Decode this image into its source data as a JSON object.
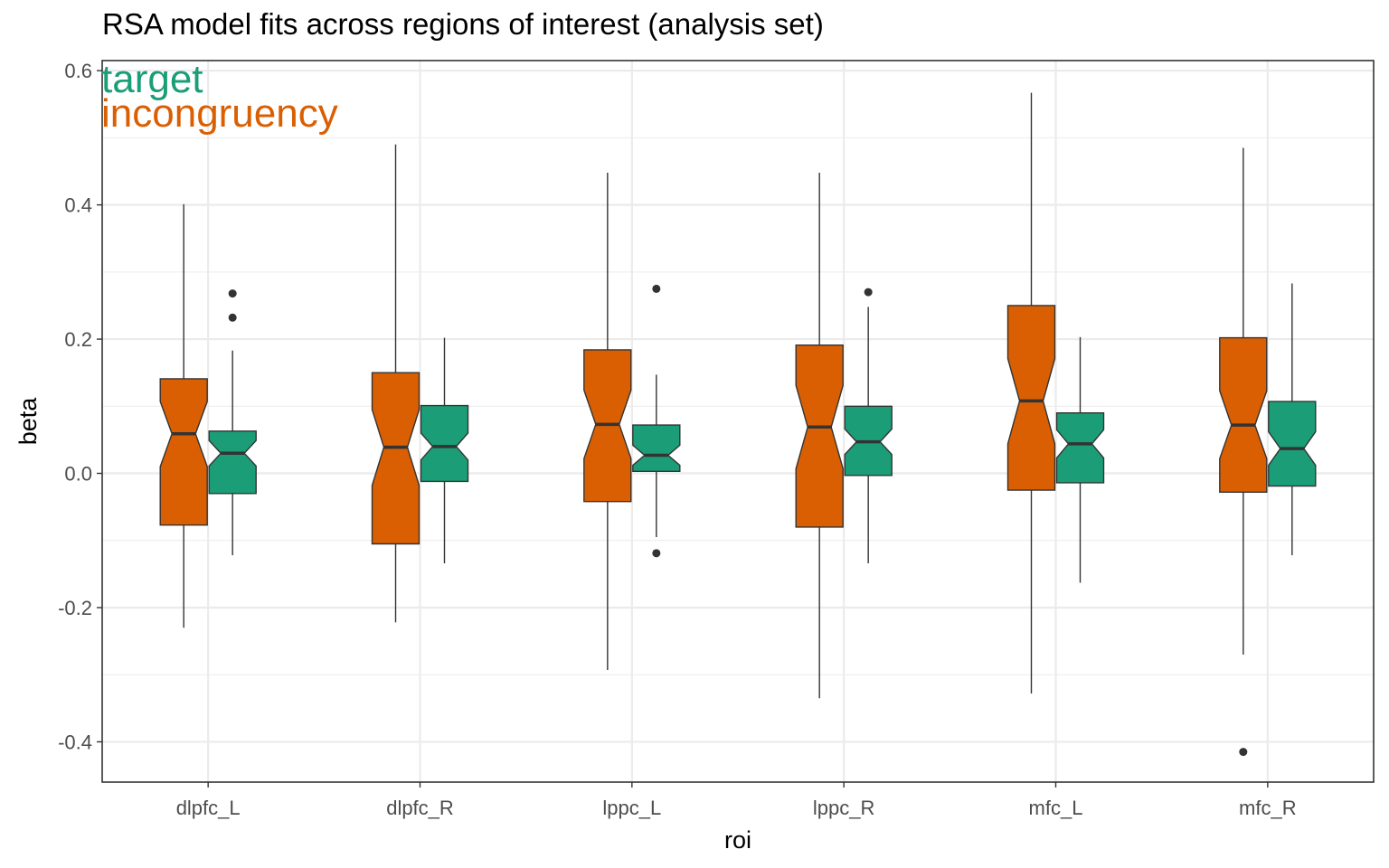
{
  "chart_data": {
    "type": "boxplot",
    "title": "RSA model fits across regions of interest (analysis set)",
    "xlabel": "roi",
    "ylabel": "beta",
    "ylim": [
      -0.46,
      0.615
    ],
    "yticks": [
      -0.4,
      -0.2,
      0.0,
      0.2,
      0.4,
      0.6
    ],
    "ytick_labels": [
      "-0.4",
      "-0.2",
      "0.0",
      "0.2",
      "0.4",
      "0.6"
    ],
    "categories": [
      "dlpfc_L",
      "dlpfc_R",
      "lppc_L",
      "lppc_R",
      "mfc_L",
      "mfc_R"
    ],
    "grid": true,
    "notched": true,
    "legend": {
      "placement": "top-left",
      "style": "colored-text"
    },
    "series": [
      {
        "name": "target",
        "color": "#1b9e77",
        "boxes": [
          {
            "whisker_low": -0.122,
            "q1": -0.03,
            "median": 0.03,
            "q3": 0.063,
            "whisker_high": 0.183,
            "notch_low": 0.011,
            "notch_high": 0.049,
            "outliers": [
              0.232,
              0.268
            ]
          },
          {
            "whisker_low": -0.134,
            "q1": -0.012,
            "median": 0.04,
            "q3": 0.101,
            "whisker_high": 0.202,
            "notch_low": 0.02,
            "notch_high": 0.06,
            "outliers": []
          },
          {
            "whisker_low": -0.095,
            "q1": 0.003,
            "median": 0.027,
            "q3": 0.072,
            "whisker_high": 0.147,
            "notch_low": 0.012,
            "notch_high": 0.042,
            "outliers": [
              -0.119,
              0.275
            ]
          },
          {
            "whisker_low": -0.134,
            "q1": -0.003,
            "median": 0.047,
            "q3": 0.1,
            "whisker_high": 0.248,
            "notch_low": 0.028,
            "notch_high": 0.066,
            "outliers": [
              0.27
            ]
          },
          {
            "whisker_low": -0.163,
            "q1": -0.014,
            "median": 0.044,
            "q3": 0.09,
            "whisker_high": 0.203,
            "notch_low": 0.023,
            "notch_high": 0.065,
            "outliers": []
          },
          {
            "whisker_low": -0.122,
            "q1": -0.019,
            "median": 0.037,
            "q3": 0.107,
            "whisker_high": 0.283,
            "notch_low": 0.012,
            "notch_high": 0.062,
            "outliers": []
          }
        ]
      },
      {
        "name": "incongruency",
        "color": "#d95f02",
        "boxes": [
          {
            "whisker_low": -0.23,
            "q1": -0.077,
            "median": 0.059,
            "q3": 0.141,
            "whisker_high": 0.401,
            "notch_low": 0.01,
            "notch_high": 0.107,
            "outliers": []
          },
          {
            "whisker_low": -0.222,
            "q1": -0.105,
            "median": 0.039,
            "q3": 0.15,
            "whisker_high": 0.49,
            "notch_low": -0.018,
            "notch_high": 0.095,
            "outliers": []
          },
          {
            "whisker_low": -0.293,
            "q1": -0.042,
            "median": 0.073,
            "q3": 0.184,
            "whisker_high": 0.448,
            "notch_low": 0.022,
            "notch_high": 0.124,
            "outliers": []
          },
          {
            "whisker_low": -0.335,
            "q1": -0.08,
            "median": 0.069,
            "q3": 0.191,
            "whisker_high": 0.448,
            "notch_low": 0.007,
            "notch_high": 0.131,
            "outliers": []
          },
          {
            "whisker_low": -0.328,
            "q1": -0.025,
            "median": 0.108,
            "q3": 0.25,
            "whisker_high": 0.567,
            "notch_low": 0.044,
            "notch_high": 0.171,
            "outliers": []
          },
          {
            "whisker_low": -0.27,
            "q1": -0.028,
            "median": 0.072,
            "q3": 0.202,
            "whisker_high": 0.485,
            "notch_low": 0.022,
            "notch_high": 0.123,
            "outliers": [
              -0.415
            ]
          }
        ]
      }
    ]
  }
}
